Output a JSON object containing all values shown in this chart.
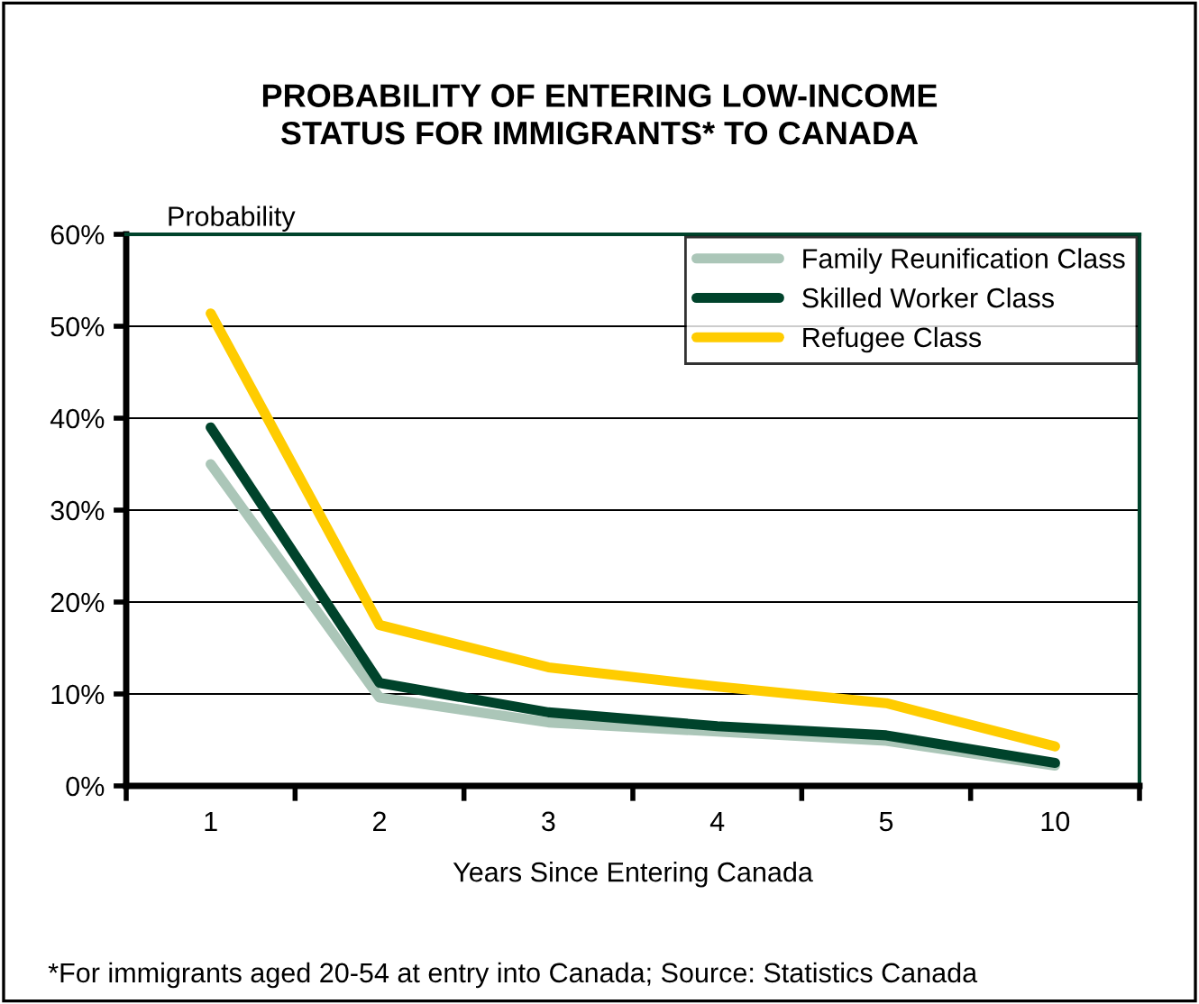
{
  "chart_data": {
    "type": "line",
    "title": "PROBABILITY OF ENTERING LOW-INCOME\nSTATUS FOR IMMIGRANTS* TO CANADA",
    "ylabel": "Probability",
    "xlabel": "Years Since Entering Canada",
    "categories": [
      "1",
      "2",
      "3",
      "4",
      "5",
      "10"
    ],
    "series": [
      {
        "name": "Family Reunification Class",
        "color": "#abc6b8",
        "values": [
          35,
          9.6,
          6.9,
          5.9,
          4.9,
          2.2
        ]
      },
      {
        "name": "Skilled Worker Class",
        "color": "#00432b",
        "values": [
          39,
          11.2,
          8,
          6.5,
          5.5,
          2.5
        ]
      },
      {
        "name": "Refugee Class",
        "color": "#ffcc00",
        "values": [
          51.4,
          17.5,
          12.9,
          10.8,
          9,
          4.3
        ]
      }
    ],
    "ylim": [
      0,
      60
    ],
    "yticks": [
      {
        "value": 0,
        "label": "0%"
      },
      {
        "value": 10,
        "label": "10%"
      },
      {
        "value": 20,
        "label": "20%"
      },
      {
        "value": 30,
        "label": "30%"
      },
      {
        "value": 40,
        "label": "40%"
      },
      {
        "value": 50,
        "label": "50%"
      },
      {
        "value": 60,
        "label": "60%"
      }
    ],
    "grid": "y",
    "legend": "top right",
    "marker": "none",
    "line_style": "solid",
    "annotations": [
      "*For immigrants aged 20-54 at entry into Canada; Source: Statistics Canada"
    ]
  }
}
